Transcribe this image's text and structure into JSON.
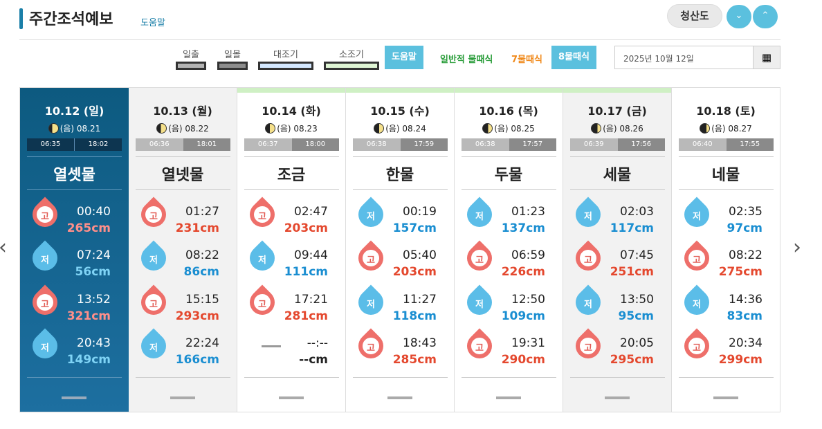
{
  "header": {
    "title": "주간조석예보",
    "help": "도움말",
    "location": "청산도",
    "down_icon": "⌄",
    "up_icon": "⌃"
  },
  "legend": [
    {
      "label": "일출",
      "color": "#b3b3b3"
    },
    {
      "label": "일몰",
      "color": "#8c8c8c"
    },
    {
      "label": "대조기",
      "color": "#d4e8ff"
    },
    {
      "label": "소조기",
      "color": "#dff5d4"
    }
  ],
  "toolbar": {
    "help_button": "도움말",
    "type_normal": "일반적 물때식",
    "type_7": "7물때식",
    "type_8": "8물때식",
    "date_value": "2025년 10월 12일",
    "normal_color": "#2a9d3a",
    "seven_color": "#f08a1c"
  },
  "days": [
    {
      "date": "10.12 (일)",
      "moon": "(음) 08.21",
      "sunrise": "06:35",
      "sunset": "18:02",
      "mul": "열셋물",
      "tides": [
        {
          "t": "H",
          "label": "고",
          "time": "00:40",
          "level": "265cm"
        },
        {
          "t": "L",
          "label": "저",
          "time": "07:24",
          "level": "56cm"
        },
        {
          "t": "H",
          "label": "고",
          "time": "13:52",
          "level": "321cm"
        },
        {
          "t": "L",
          "label": "저",
          "time": "20:43",
          "level": "149cm"
        }
      ]
    },
    {
      "date": "10.13 (월)",
      "moon": "(음) 08.22",
      "sunrise": "06:36",
      "sunset": "18:01",
      "mul": "열넷물",
      "tides": [
        {
          "t": "H",
          "label": "고",
          "time": "01:27",
          "level": "231cm"
        },
        {
          "t": "L",
          "label": "저",
          "time": "08:22",
          "level": "86cm"
        },
        {
          "t": "H",
          "label": "고",
          "time": "15:15",
          "level": "293cm"
        },
        {
          "t": "L",
          "label": "저",
          "time": "22:24",
          "level": "166cm"
        }
      ]
    },
    {
      "date": "10.14 (화)",
      "moon": "(음) 08.23",
      "sunrise": "06:37",
      "sunset": "18:00",
      "mul": "조금",
      "tides": [
        {
          "t": "H",
          "label": "고",
          "time": "02:47",
          "level": "203cm"
        },
        {
          "t": "L",
          "label": "저",
          "time": "09:44",
          "level": "111cm"
        },
        {
          "t": "H",
          "label": "고",
          "time": "17:21",
          "level": "281cm"
        },
        {
          "t": "N",
          "label": "",
          "time": "--:--",
          "level": "--cm"
        }
      ]
    },
    {
      "date": "10.15 (수)",
      "moon": "(음) 08.24",
      "sunrise": "06:38",
      "sunset": "17:59",
      "mul": "한물",
      "tides": [
        {
          "t": "L",
          "label": "저",
          "time": "00:19",
          "level": "157cm"
        },
        {
          "t": "H",
          "label": "고",
          "time": "05:40",
          "level": "203cm"
        },
        {
          "t": "L",
          "label": "저",
          "time": "11:27",
          "level": "118cm"
        },
        {
          "t": "H",
          "label": "고",
          "time": "18:43",
          "level": "285cm"
        }
      ]
    },
    {
      "date": "10.16 (목)",
      "moon": "(음) 08.25",
      "sunrise": "06:38",
      "sunset": "17:57",
      "mul": "두물",
      "tides": [
        {
          "t": "L",
          "label": "저",
          "time": "01:23",
          "level": "137cm"
        },
        {
          "t": "H",
          "label": "고",
          "time": "06:59",
          "level": "226cm"
        },
        {
          "t": "L",
          "label": "저",
          "time": "12:50",
          "level": "109cm"
        },
        {
          "t": "H",
          "label": "고",
          "time": "19:31",
          "level": "290cm"
        }
      ]
    },
    {
      "date": "10.17 (금)",
      "moon": "(음) 08.26",
      "sunrise": "06:39",
      "sunset": "17:56",
      "mul": "세물",
      "tides": [
        {
          "t": "L",
          "label": "저",
          "time": "02:03",
          "level": "117cm"
        },
        {
          "t": "H",
          "label": "고",
          "time": "07:45",
          "level": "251cm"
        },
        {
          "t": "L",
          "label": "저",
          "time": "13:50",
          "level": "95cm"
        },
        {
          "t": "H",
          "label": "고",
          "time": "20:05",
          "level": "295cm"
        }
      ]
    },
    {
      "date": "10.18 (토)",
      "moon": "(음) 08.27",
      "sunrise": "06:40",
      "sunset": "17:55",
      "mul": "네물",
      "tides": [
        {
          "t": "L",
          "label": "저",
          "time": "02:35",
          "level": "97cm"
        },
        {
          "t": "H",
          "label": "고",
          "time": "08:22",
          "level": "275cm"
        },
        {
          "t": "L",
          "label": "저",
          "time": "14:36",
          "level": "83cm"
        },
        {
          "t": "H",
          "label": "고",
          "time": "20:34",
          "level": "299cm"
        }
      ]
    }
  ],
  "nav": {
    "prev": "‹",
    "next": "›"
  }
}
